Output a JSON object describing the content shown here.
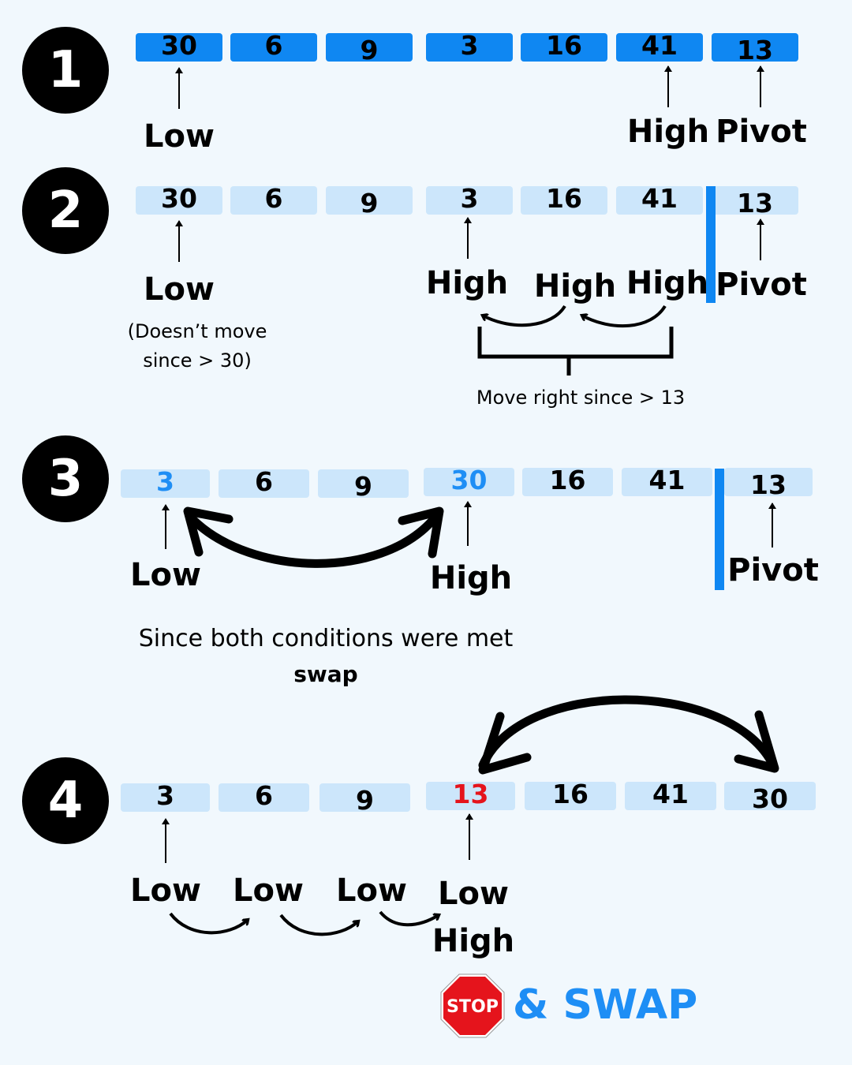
{
  "steps": [
    {
      "number": "1",
      "cells": [
        "30",
        "6",
        "9",
        "3",
        "16",
        "41",
        "13"
      ],
      "pointers": {
        "low": "Low",
        "high": "High",
        "pivot": "Pivot"
      }
    },
    {
      "number": "2",
      "cells": [
        "30",
        "6",
        "9",
        "3",
        "16",
        "41",
        "13"
      ],
      "pointers": {
        "low": "Low",
        "high_1": "High",
        "high_2": "High",
        "high_3": "High",
        "pivot": "Pivot"
      },
      "low_note": [
        "(Doesn’t move",
        "since > 30)"
      ],
      "high_note": "Move right since > 13"
    },
    {
      "number": "3",
      "cells": [
        "3",
        "6",
        "9",
        "30",
        "16",
        "41",
        "13"
      ],
      "pointers": {
        "low": "Low",
        "high": "High",
        "pivot": "Pivot"
      },
      "caption": "Since both conditions were met",
      "caption_bold": "swap"
    },
    {
      "number": "4",
      "cells": [
        "3",
        "6",
        "9",
        "13",
        "16",
        "41",
        "30"
      ],
      "pointers": {
        "low_1": "Low",
        "low_2": "Low",
        "low_3": "Low",
        "low_4": "Low",
        "high": "High"
      },
      "stop_sign": "STOP",
      "stop_caption": "& SWAP"
    }
  ],
  "colors": {
    "background": "#f1f8fd",
    "cell_dark": "#0f87f2",
    "cell_light": "#cce6fb",
    "highlight_blue": "#1e8ef5",
    "highlight_red": "#e5141c",
    "stop_red": "#e5141c"
  }
}
